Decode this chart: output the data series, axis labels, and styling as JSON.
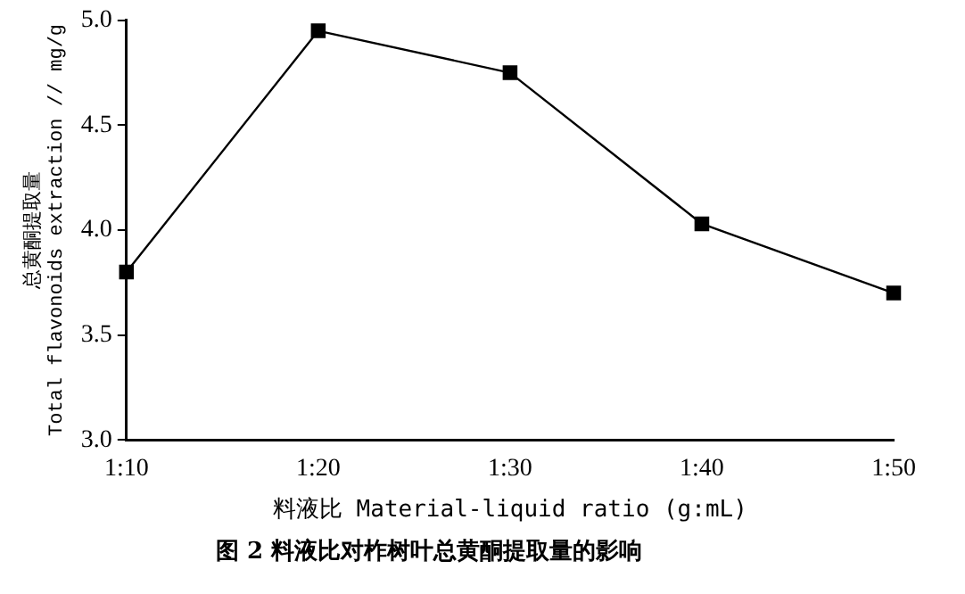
{
  "chart_data": {
    "type": "line",
    "categories": [
      "1:10",
      "1:20",
      "1:30",
      "1:40",
      "1:50"
    ],
    "values": [
      3.8,
      4.95,
      4.75,
      4.03,
      3.7
    ],
    "color": "#000000",
    "marker": "square",
    "line_style": "solid",
    "ylim": [
      3.0,
      5.0
    ],
    "yticks": [
      {
        "value": 3,
        "label": "3.0"
      },
      3.5,
      {
        "value": 4,
        "label": "4.0"
      },
      4.5,
      {
        "value": 5,
        "label": "5.0"
      }
    ],
    "xlabel": "料液比 Material-liquid ratio (g:mL)",
    "ylabel": "总黄酮提取量\nTotal flavonoids extraction // mg/g",
    "grid": false,
    "legend": false,
    "annotations": [
      "图 2   料液比对柞树叶总黄酮提取量的影响"
    ]
  }
}
